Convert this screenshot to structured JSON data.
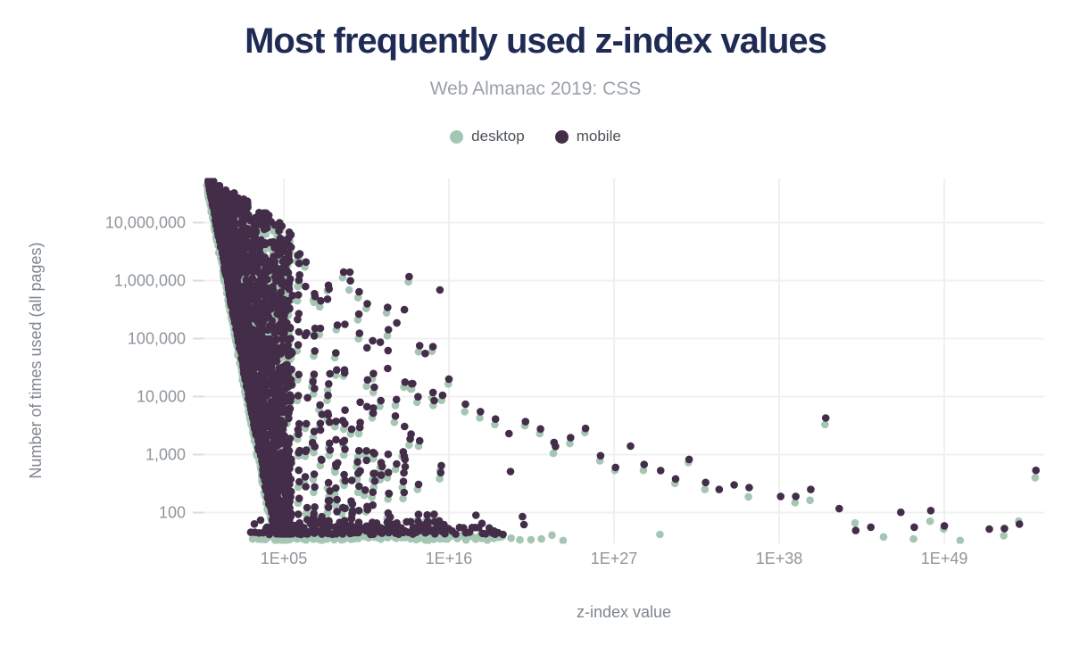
{
  "chart_data": {
    "type": "scatter",
    "title": "Most frequently used z-index values",
    "subtitle": "Web Almanac 2019: CSS",
    "xlabel": "z-index value",
    "ylabel": "Number of times used (all pages)",
    "x_axis": {
      "scale": "log",
      "tick_labels": [
        "1E+05",
        "1E+16",
        "1E+27",
        "1E+38",
        "1E+49"
      ],
      "tick_exponents": [
        5,
        16,
        27,
        38,
        49
      ],
      "exponent_range": [
        0,
        55.7
      ],
      "grid": true
    },
    "y_axis": {
      "scale": "log",
      "tick_labels": [
        "100",
        "1,000",
        "10,000",
        "100,000",
        "1,000,000",
        "10,000,000"
      ],
      "tick_values": [
        100,
        1000,
        10000,
        100000,
        1000000,
        10000000
      ],
      "range": [
        28,
        60000000
      ],
      "grid": true
    },
    "series": [
      {
        "name": "desktop",
        "color": "#a4c6b3"
      },
      {
        "name": "mobile",
        "color": "#432d49"
      }
    ],
    "legend_position": "top",
    "peak_points": [
      {
        "e": 0.05,
        "m": 60000000,
        "d": 45000000
      },
      {
        "e": 6.05,
        "m": 1250000,
        "d": 920000
      },
      {
        "e": 9.4,
        "m": 1400000,
        "d": 690000
      },
      {
        "e": 13.35,
        "m": 1170000,
        "d": 950000
      },
      {
        "e": 15.4,
        "m": 690000,
        "d": null
      }
    ],
    "tail_points": [
      {
        "e": 16.0,
        "m": 20000,
        "d": 16500
      },
      {
        "e": 17.1,
        "m": 7400,
        "d": 5500
      },
      {
        "e": 17.8,
        "m": 90,
        "d": null
      },
      {
        "e": 18.1,
        "m": 5500,
        "d": 4300
      },
      {
        "e": 18.2,
        "m": 65,
        "d": null
      },
      {
        "e": 19.0,
        "m": 48,
        "d": null
      },
      {
        "e": 19.1,
        "m": 4100,
        "d": 3300
      },
      {
        "e": 19.6,
        "m": 42,
        "d": null
      },
      {
        "e": 20.0,
        "m": 2300,
        "d": null
      },
      {
        "e": 20.1,
        "m": 510,
        "d": null
      },
      {
        "e": 20.9,
        "m": 85,
        "d": null
      },
      {
        "e": 21.0,
        "m": 62,
        "d": null
      },
      {
        "e": 21.1,
        "m": 3700,
        "d": 3150
      },
      {
        "e": 22.1,
        "m": 2760,
        "d": 2300
      },
      {
        "e": 23.0,
        "m": 1620,
        "d": 1050
      },
      {
        "e": 23.1,
        "m": 1380,
        "d": null
      },
      {
        "e": 24.1,
        "m": 1950,
        "d": 1550
      },
      {
        "e": 25.1,
        "m": 2820,
        "d": 2400
      },
      {
        "e": 26.1,
        "m": 955,
        "d": 780
      },
      {
        "e": 27.1,
        "m": 600,
        "d": 535
      },
      {
        "e": 28.1,
        "m": 1400,
        "d": null
      },
      {
        "e": 29.0,
        "m": 675,
        "d": 535
      },
      {
        "e": 30.1,
        "m": 530,
        "d": 42
      },
      {
        "e": 31.1,
        "m": 380,
        "d": 318
      },
      {
        "e": 32.0,
        "m": 825,
        "d": 730
      },
      {
        "e": 33.1,
        "m": 330,
        "d": 250
      },
      {
        "e": 34.0,
        "m": 250,
        "d": null
      },
      {
        "e": 35.0,
        "m": 300,
        "d": null
      },
      {
        "e": 36.0,
        "m": 270,
        "d": 187
      },
      {
        "e": 38.1,
        "m": 190,
        "d": null
      },
      {
        "e": 39.1,
        "m": 190,
        "d": 148
      },
      {
        "e": 40.1,
        "m": 250,
        "d": 163
      },
      {
        "e": 41.1,
        "m": 4270,
        "d": 3300
      },
      {
        "e": 42.0,
        "m": 117,
        "d": null
      },
      {
        "e": 43.1,
        "m": 49,
        "d": 66
      },
      {
        "e": 44.1,
        "m": 56,
        "d": null
      },
      {
        "e": 45.0,
        "m": null,
        "d": 38
      },
      {
        "e": 46.1,
        "m": 101,
        "d": null
      },
      {
        "e": 47.0,
        "m": 56,
        "d": 35
      },
      {
        "e": 48.1,
        "m": 108,
        "d": 71
      },
      {
        "e": 49.0,
        "m": 59,
        "d": 52
      },
      {
        "e": 50.1,
        "m": null,
        "d": 33
      },
      {
        "e": 52.0,
        "m": 52,
        "d": null
      },
      {
        "e": 53.0,
        "m": 53,
        "d": 40
      },
      {
        "e": 54.0,
        "m": 63,
        "d": 71
      },
      {
        "e": 55.1,
        "m": 535,
        "d": 400
      }
    ],
    "cloud": {
      "description": "Dense cloud of z-index values between 1 and ~1E+15: counts span ~30 to 50,000,000; lower envelope of counts falls steeply with exponent (every small z-index value is heavily used), vertical stripes sit at round-number exponents, and a near-solid band of points hugs the bottom count cutoff.",
      "seed": 20190512,
      "wall": {
        "n": 2300,
        "e_max": 5.45,
        "e_power": 0.8,
        "log_top0": 7.78,
        "top_slope": 0.16,
        "log_bot0": 7.75,
        "bot_slope": 1.38,
        "log_floor": 1.56,
        "v_power": 2.6
      },
      "stripes": {
        "e_start": 5.5,
        "e_end": 15.5,
        "step": 0.5,
        "n_base": 16,
        "n_slope": 1.25,
        "int_boost": 1.6,
        "log_top0": 6.45,
        "top_slope": 0.12,
        "top_noise": 0.3,
        "log_floor": 1.6,
        "v_power": 2.0,
        "desktop_frac": 0.7
      },
      "bottom_band": {
        "x_start": 281,
        "x_dense_end": 560,
        "desktop_x_end": 634,
        "mobile_y": [
          591,
          599
        ],
        "desktop_y": [
          599.5,
          606
        ]
      }
    },
    "plot_colors": {
      "grid": "#f0f0f0",
      "tick_stub": "#d9dcdf",
      "background": "#ffffff"
    }
  },
  "styles": {
    "title_color": "#1f2b55",
    "subtitle_color": "#9ba1a9",
    "legend_text_color": "#4c5157",
    "tick_label_color": "#8e959c",
    "axis_title_color": "#7f868d"
  }
}
